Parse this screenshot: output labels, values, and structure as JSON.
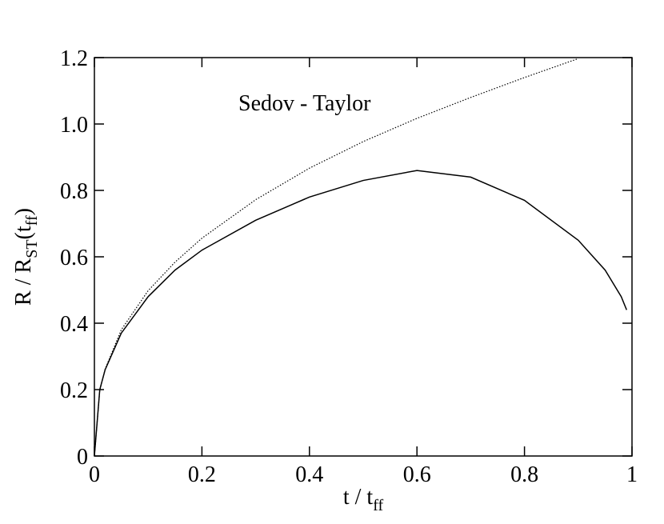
{
  "chart_data": {
    "type": "line",
    "annotation": "Sedov - Taylor",
    "xlabel": [
      "t / t",
      "ff"
    ],
    "ylabel": [
      "R / R",
      "ST",
      "(t",
      "ff",
      ")"
    ],
    "xlim": [
      0,
      1
    ],
    "xticks": [
      0,
      0.2,
      0.4,
      0.6,
      0.8,
      1
    ],
    "ylim": [
      0,
      1.2
    ],
    "yticks": [
      0,
      0.2,
      0.4,
      0.6,
      0.8,
      {
        "value": 1,
        "label": "1.0"
      },
      1.2
    ],
    "series": [
      {
        "color": "#000000",
        "dash": false,
        "x": [
          0,
          0.01,
          0.02,
          0.05,
          0.1,
          0.15,
          0.2,
          0.3,
          0.4,
          0.5,
          0.6,
          0.7,
          0.8,
          0.9,
          0.95,
          0.98,
          0.99
        ],
        "values": [
          0,
          0.2,
          0.26,
          0.37,
          0.48,
          0.56,
          0.62,
          0.71,
          0.78,
          0.83,
          0.86,
          0.84,
          0.77,
          0.65,
          0.56,
          0.48,
          0.44
        ]
      },
      {
        "color": "#000000",
        "dash": true,
        "x": [
          0,
          0.01,
          0.02,
          0.05,
          0.1,
          0.15,
          0.2,
          0.3,
          0.4,
          0.5,
          0.6,
          0.7,
          0.8,
          0.9
        ],
        "values": [
          0,
          0.198,
          0.262,
          0.38,
          0.498,
          0.584,
          0.656,
          0.772,
          0.867,
          0.947,
          1.017,
          1.08,
          1.14,
          1.197
        ]
      }
    ]
  }
}
